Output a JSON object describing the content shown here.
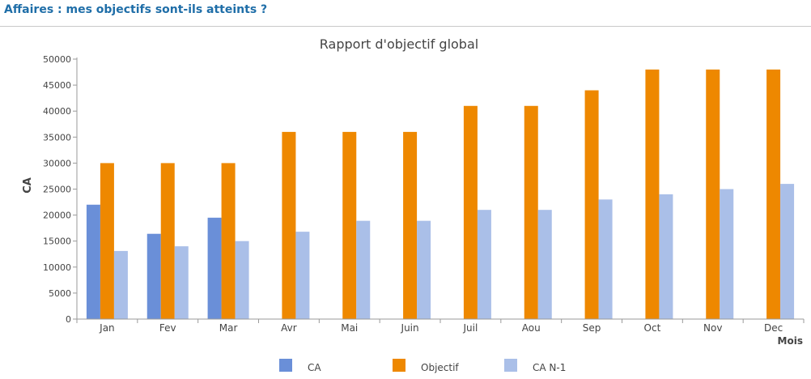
{
  "page": {
    "title": "Affaires : mes objectifs sont-ils atteints ?"
  },
  "chart_data": {
    "type": "bar",
    "title": "Rapport d'objectif global",
    "xlabel": "Mois",
    "ylabel": "CA",
    "ylim": [
      0,
      50000
    ],
    "yticks": [
      0,
      5000,
      10000,
      15000,
      20000,
      25000,
      30000,
      35000,
      40000,
      45000,
      50000
    ],
    "grid": false,
    "legend_position": "bottom",
    "categories": [
      "Jan",
      "Fev",
      "Mar",
      "Avr",
      "Mai",
      "Juin",
      "Juil",
      "Aou",
      "Sep",
      "Oct",
      "Nov",
      "Dec"
    ],
    "series": [
      {
        "name": "CA",
        "color": "#6a8fd8",
        "values": [
          22000,
          16400,
          19500,
          null,
          null,
          null,
          null,
          null,
          null,
          null,
          null,
          null
        ]
      },
      {
        "name": "Objectif",
        "color": "#ee8800",
        "values": [
          30000,
          30000,
          30000,
          36000,
          36000,
          36000,
          41000,
          41000,
          44000,
          48000,
          48000,
          48000
        ]
      },
      {
        "name": "CA N-1",
        "color": "#aabfe8",
        "values": [
          13100,
          14000,
          15000,
          16800,
          18900,
          18900,
          21000,
          21000,
          23000,
          24000,
          25000,
          26000
        ]
      }
    ]
  }
}
